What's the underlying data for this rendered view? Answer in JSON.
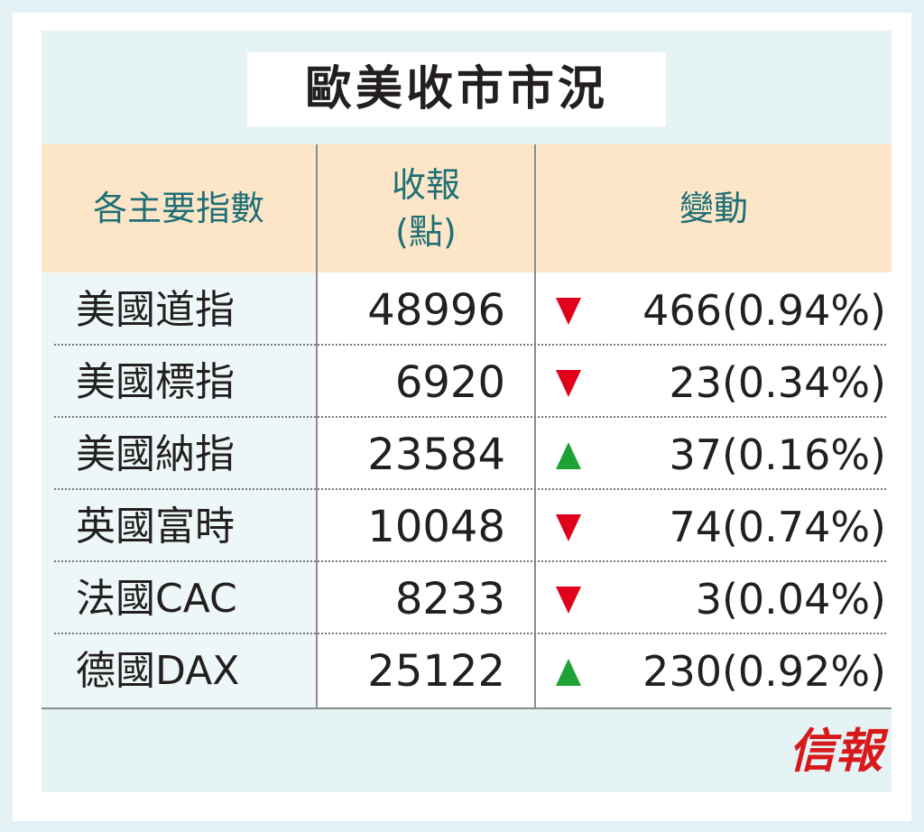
{
  "title": "歐美收市市況",
  "headers": {
    "index": "各主要指數",
    "close_line1": "收報",
    "close_line2": "(點)",
    "change": "變動"
  },
  "rows": [
    {
      "name": "美國道指",
      "close": "48996",
      "direction": "down",
      "change": "466(0.94%)"
    },
    {
      "name": "美國標指",
      "close": "6920",
      "direction": "down",
      "change": "23(0.34%)"
    },
    {
      "name": "美國納指",
      "close": "23584",
      "direction": "up",
      "change": "37(0.16%)"
    },
    {
      "name": "英國富時",
      "close": "10048",
      "direction": "down",
      "change": "74(0.74%)"
    },
    {
      "name": "法國CAC",
      "close": "8233",
      "direction": "down",
      "change": "3(0.04%)"
    },
    {
      "name": "德國DAX",
      "close": "25122",
      "direction": "up",
      "change": "230(0.92%)"
    }
  ],
  "logo": "信報",
  "colors": {
    "up": "#1fa235",
    "down": "#e1001b",
    "header_text": "#1e6f76",
    "header_bg": "#fde6c8"
  }
}
